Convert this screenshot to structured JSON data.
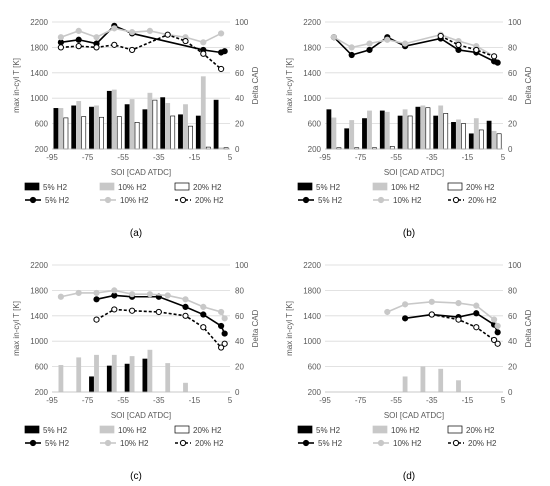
{
  "chart_data": [
    {
      "panel_label": "(a)",
      "type": "bar",
      "xlabel": "SOI [CAD ATDC]",
      "ylabel": "max in-cyl T [K]",
      "y2label": "Delta CAD",
      "xlim": [
        -95,
        5
      ],
      "ylim": [
        200,
        2200
      ],
      "y2lim": [
        0,
        100
      ],
      "x_ticks": [
        "-95",
        "-75",
        "-55",
        "-35",
        "-15",
        "5"
      ],
      "y_ticks": [
        "200",
        "600",
        "1000",
        "1400",
        "1800",
        "2200"
      ],
      "y2_ticks": [
        "0",
        "20",
        "40",
        "60",
        "80",
        "100"
      ],
      "bar_series": [
        {
          "name": "5% H2",
          "x": [
            -90,
            -80,
            -70,
            -60,
            -50,
            -40,
            -30,
            -20,
            -10,
            0
          ],
          "values": [
            840,
            880,
            860,
            1110,
            900,
            820,
            1010,
            740,
            720,
            970
          ]
        },
        {
          "name": "10% H2",
          "x": [
            -90,
            -80,
            -70,
            -60,
            -50,
            -40,
            -30,
            -20,
            -10,
            0
          ],
          "values": [
            840,
            950,
            880,
            1130,
            980,
            1080,
            920,
            900,
            1340,
            220
          ]
        },
        {
          "name": "20% H2",
          "x": [
            -90,
            -80,
            -70,
            -60,
            -50,
            -40,
            -30,
            -20,
            -10,
            0
          ],
          "values": [
            690,
            710,
            700,
            710,
            620,
            970,
            720,
            560,
            230,
            220
          ]
        }
      ],
      "line_series": [
        {
          "name": "5% H2",
          "x": [
            -90,
            -80,
            -70,
            -60,
            -50,
            -10,
            0,
            2
          ],
          "values": [
            84,
            86,
            83,
            97,
            91,
            78,
            76,
            77
          ]
        },
        {
          "name": "10% H2",
          "x": [
            -90,
            -80,
            -70,
            -60,
            -50,
            -40,
            -30,
            -20,
            -10,
            0
          ],
          "values": [
            88,
            93,
            88,
            95,
            92,
            93,
            90,
            88,
            84,
            91
          ]
        },
        {
          "name": "20% H2",
          "x": [
            -90,
            -80,
            -70,
            -60,
            -50,
            -30,
            -20,
            -10,
            0
          ],
          "values": [
            80,
            81,
            80,
            82,
            78,
            90,
            85,
            75,
            63
          ]
        }
      ]
    },
    {
      "panel_label": "(b)",
      "type": "bar",
      "xlabel": "SOI [CAD ATDC]",
      "ylabel": "max in-cyl T [K]",
      "y2label": "Delta CAD",
      "xlim": [
        -95,
        5
      ],
      "ylim": [
        200,
        2200
      ],
      "y2lim": [
        0,
        100
      ],
      "x_ticks": [
        "-95",
        "-75",
        "-55",
        "-35",
        "-15",
        "5"
      ],
      "y_ticks": [
        "200",
        "600",
        "1000",
        "1400",
        "1800",
        "2200"
      ],
      "y2_ticks": [
        "0",
        "20",
        "40",
        "60",
        "80",
        "100"
      ],
      "bar_series": [
        {
          "name": "5% H2",
          "x": [
            -90,
            -80,
            -70,
            -60,
            -50,
            -40,
            -30,
            -20,
            -10,
            0
          ],
          "values": [
            820,
            520,
            680,
            800,
            720,
            860,
            720,
            620,
            440,
            640
          ]
        },
        {
          "name": "10% H2",
          "x": [
            -90,
            -80,
            -70,
            -60,
            -50,
            -40,
            -30,
            -20,
            -10,
            0
          ],
          "values": [
            690,
            650,
            800,
            780,
            820,
            880,
            880,
            660,
            680,
            480
          ]
        },
        {
          "name": "20% H2",
          "x": [
            -90,
            -80,
            -70,
            -60,
            -50,
            -40,
            -30,
            -20,
            -10,
            0
          ],
          "values": [
            220,
            220,
            220,
            240,
            720,
            850,
            760,
            600,
            500,
            440
          ]
        }
      ],
      "line_series": [
        {
          "name": "5% H2",
          "x": [
            -90,
            -80,
            -70,
            -60,
            -50,
            -30,
            -20,
            -10,
            0,
            2
          ],
          "values": [
            88,
            74,
            78,
            88,
            81,
            87,
            78,
            76,
            69,
            68
          ]
        },
        {
          "name": "10% H2",
          "x": [
            -90,
            -80,
            -70,
            -60,
            -50,
            -30,
            -20,
            -10,
            0
          ],
          "values": [
            88,
            80,
            83,
            86,
            83,
            90,
            85,
            81,
            73
          ]
        },
        {
          "name": "20% H2",
          "x": [
            -30,
            -20,
            -10,
            0
          ],
          "values": [
            89,
            82,
            78,
            73
          ]
        }
      ]
    },
    {
      "panel_label": "(c)",
      "type": "bar",
      "xlabel": "SOI [CAD ATDC]",
      "ylabel": "max in-cyl T [K]",
      "y2label": "Delta CAD",
      "xlim": [
        -95,
        5
      ],
      "ylim": [
        200,
        2200
      ],
      "y2lim": [
        0,
        100
      ],
      "x_ticks": [
        "-95",
        "-75",
        "-55",
        "-35",
        "-15",
        "5"
      ],
      "y_ticks": [
        "200",
        "600",
        "1000",
        "1400",
        "1800",
        "2200"
      ],
      "y2_ticks": [
        "0",
        "20",
        "40",
        "60",
        "80",
        "100"
      ],
      "bar_series": [
        {
          "name": "5% H2",
          "x": [
            -70,
            -60,
            -50,
            -40
          ],
          "values": [
            440,
            610,
            640,
            720
          ]
        },
        {
          "name": "10% H2",
          "x": [
            -90,
            -80,
            -70,
            -60,
            -50,
            -40,
            -30,
            -20
          ],
          "values": [
            620,
            740,
            780,
            780,
            760,
            860,
            650,
            340
          ]
        },
        {
          "name": "20% H2",
          "x": [],
          "values": []
        }
      ],
      "line_series": [
        {
          "name": "5% H2",
          "x": [
            -70,
            -60,
            -50,
            -35,
            -20,
            -10,
            0,
            2
          ],
          "values": [
            73,
            76,
            75,
            75,
            67,
            61,
            52,
            46
          ]
        },
        {
          "name": "10% H2",
          "x": [
            -90,
            -80,
            -70,
            -60,
            -50,
            -40,
            -30,
            -20,
            -10,
            0,
            2
          ],
          "values": [
            75,
            78,
            78,
            80,
            77,
            77,
            76,
            73,
            67,
            63,
            58
          ]
        },
        {
          "name": "20% H2",
          "x": [
            -70,
            -60,
            -50,
            -35,
            -20,
            -10,
            0,
            2
          ],
          "values": [
            57,
            65,
            64,
            63,
            60,
            51,
            35,
            38
          ]
        }
      ]
    },
    {
      "panel_label": "(d)",
      "type": "bar",
      "xlabel": "SOI [CAD ATDC]",
      "ylabel": "max in-cyl T [K]",
      "y2label": "Delta CAD",
      "xlim": [
        -95,
        5
      ],
      "ylim": [
        200,
        2200
      ],
      "y2lim": [
        0,
        100
      ],
      "x_ticks": [
        "-95",
        "-75",
        "-55",
        "-35",
        "-15",
        "5"
      ],
      "y_ticks": [
        "200",
        "600",
        "1000",
        "1400",
        "1800",
        "2200"
      ],
      "y2_ticks": [
        "0",
        "20",
        "40",
        "60",
        "80",
        "100"
      ],
      "bar_series": [
        {
          "name": "5% H2",
          "x": [],
          "values": []
        },
        {
          "name": "10% H2",
          "x": [
            -50,
            -40,
            -30,
            -20
          ],
          "values": [
            440,
            600,
            560,
            380
          ]
        },
        {
          "name": "20% H2",
          "x": [],
          "values": []
        }
      ],
      "line_series": [
        {
          "name": "5% H2",
          "x": [
            -50,
            -35,
            -20,
            -10,
            0,
            2
          ],
          "values": [
            58,
            61,
            59,
            62,
            53,
            47
          ]
        },
        {
          "name": "10% H2",
          "x": [
            -60,
            -50,
            -35,
            -20,
            -10,
            0,
            2
          ],
          "values": [
            63,
            69,
            71,
            70,
            68,
            57,
            52
          ]
        },
        {
          "name": "20% H2",
          "x": [
            -35,
            -20,
            -10,
            0,
            2
          ],
          "values": [
            61,
            57,
            51,
            41,
            38
          ]
        }
      ]
    }
  ],
  "colors": {
    "bar_5": "#000000",
    "bar_10": "#c8c8c8",
    "bar_20": "#ffffff",
    "line_5": "#000000",
    "line_10": "#c8c8c8",
    "line_20": "#000000",
    "axis_text": "#595959",
    "grid": "#d9d9d9"
  }
}
